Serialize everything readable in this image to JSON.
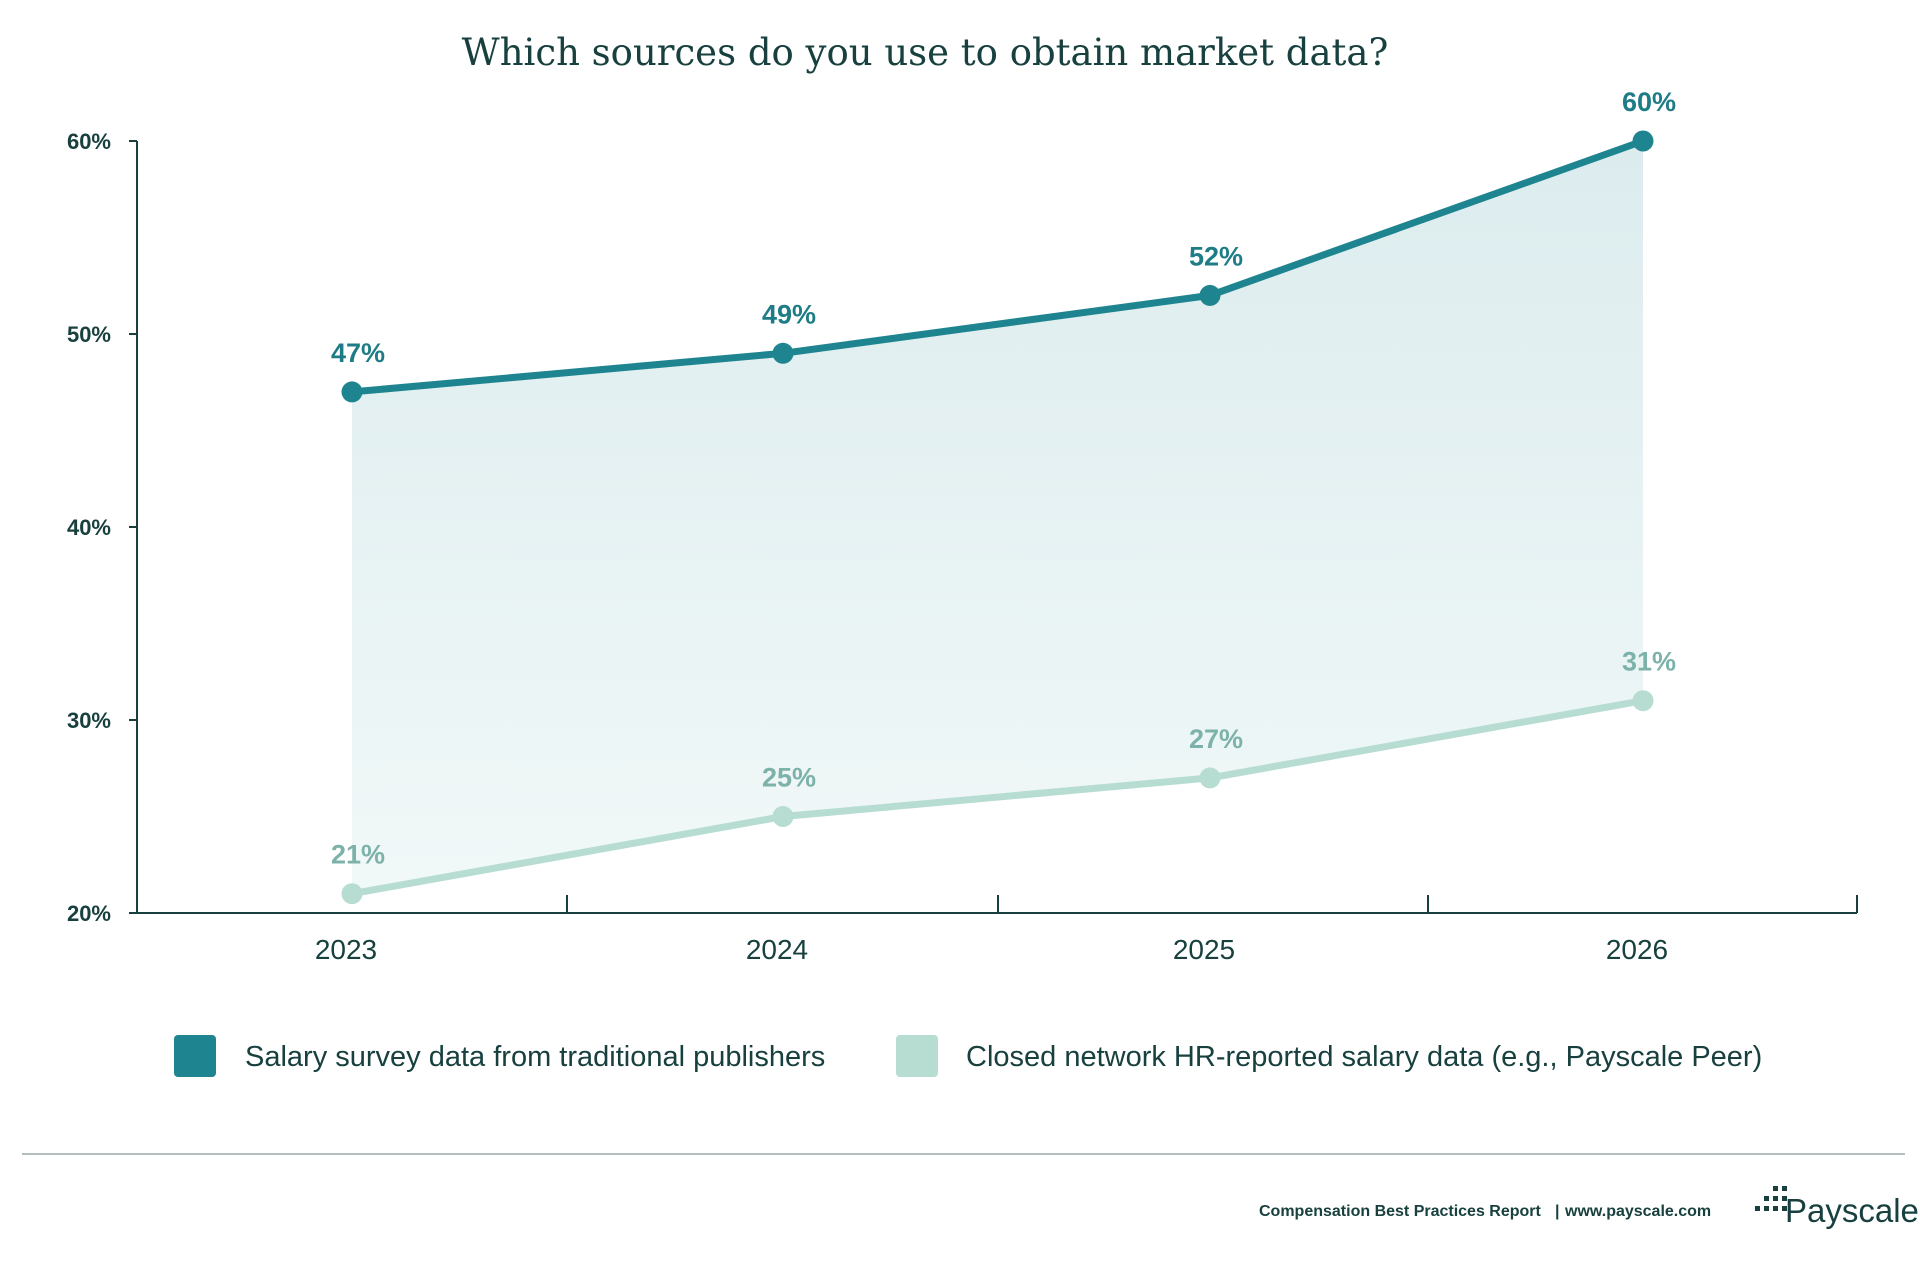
{
  "chart_data": {
    "type": "line",
    "title": "Which sources do you use to obtain market data?",
    "categories": [
      "2023",
      "2024",
      "2025",
      "2026"
    ],
    "yticks": [
      "20%",
      "30%",
      "40%",
      "50%",
      "60%"
    ],
    "ylim": [
      20,
      60
    ],
    "y_unit": "%",
    "area_fill_between_series": true,
    "series": [
      {
        "name": "Salary survey data from traditional publishers",
        "values": [
          47,
          49,
          52,
          60
        ],
        "labels": [
          "47%",
          "49%",
          "52%",
          "60%"
        ],
        "color": "#1e8590",
        "label_color": "#1e7c86"
      },
      {
        "name": "Closed network HR-reported salary data (e.g., Payscale Peer)",
        "values": [
          21,
          25,
          27,
          31
        ],
        "labels": [
          "21%",
          "25%",
          "27%",
          "31%"
        ],
        "color": "#b7ddd3",
        "label_color": "#7db2ab"
      }
    ],
    "legend_position": "bottom",
    "grid": false
  },
  "footer": {
    "report": "Compensation Best Practices Report",
    "separator": "|",
    "url": "www.payscale.com",
    "brand": "Payscale"
  },
  "colors": {
    "axis": "#17403e",
    "fill_top": "#dcecee",
    "fill_bottom": "#f1f8f8",
    "divider": "#9aa9a8"
  }
}
